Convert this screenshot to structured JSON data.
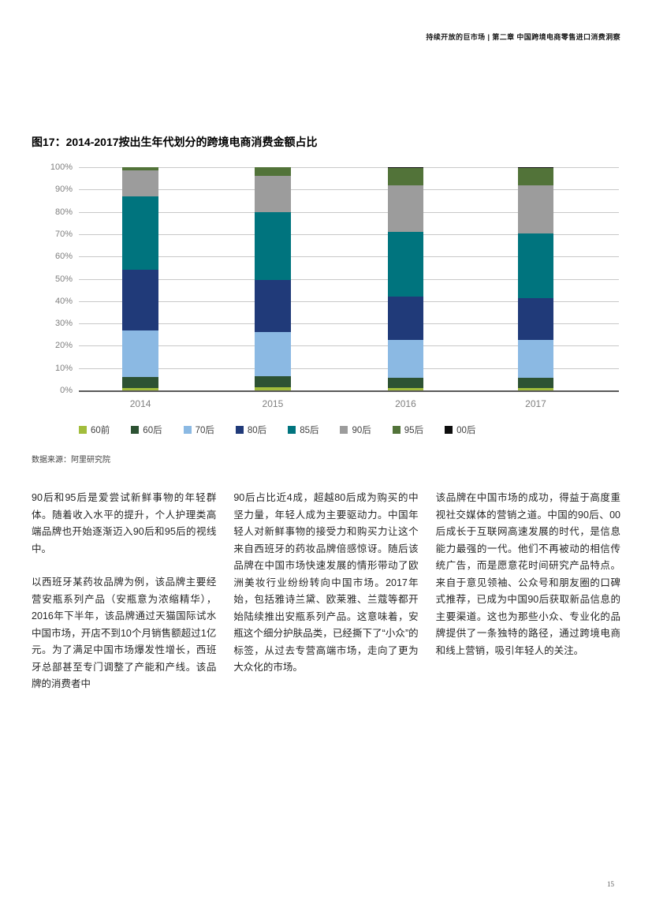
{
  "page": {
    "header": "持续开放的巨市场 | 第二章 中国跨境电商零售进口消费洞察",
    "page_number": "15"
  },
  "figure": {
    "title": "图17：2014-2017按出生年代划分的跨境电商消费金额占比",
    "source": "数据来源：阿里研究院"
  },
  "chart_data": {
    "type": "bar",
    "stacked": true,
    "title": "图17：2014-2017按出生年代划分的跨境电商消费金额占比",
    "categories": [
      "2014",
      "2015",
      "2016",
      "2017"
    ],
    "series": [
      {
        "name": "60前",
        "color": "#a2bd3c",
        "values": [
          1,
          1.5,
          1,
          1
        ]
      },
      {
        "name": "60后",
        "color": "#2d5233",
        "values": [
          5,
          5,
          4.5,
          4.5
        ]
      },
      {
        "name": "70后",
        "color": "#8bb9e3",
        "values": [
          21,
          19.5,
          17,
          17
        ]
      },
      {
        "name": "80后",
        "color": "#203a79",
        "values": [
          27,
          23.5,
          19.5,
          19
        ]
      },
      {
        "name": "85后",
        "color": "#00747e",
        "values": [
          33,
          30.5,
          29,
          29
        ]
      },
      {
        "name": "90后",
        "color": "#9c9c9c",
        "values": [
          11.5,
          16,
          21,
          21.5
        ]
      },
      {
        "name": "95后",
        "color": "#527339",
        "values": [
          1.5,
          4,
          7.5,
          7.5
        ]
      },
      {
        "name": "00后",
        "color": "#0d0d0d",
        "values": [
          0,
          0,
          0.5,
          0.5
        ]
      }
    ],
    "xlabel": "",
    "ylabel": "",
    "ylim": [
      0,
      100
    ],
    "yticks": [
      "100%",
      "90%",
      "80%",
      "70%",
      "60%",
      "50%",
      "40%",
      "30%",
      "20%",
      "10%",
      "0%"
    ],
    "bar_centers_pct": [
      11.4,
      35.9,
      60.5,
      84.6
    ],
    "grid": true,
    "legend_position": "bottom"
  },
  "body": {
    "col1": [
      "90后和95后是爱尝试新鲜事物的年轻群体。随着收入水平的提升，个人护理类高端品牌也开始逐渐迈入90后和95后的视线中。",
      "以西班牙某药妆品牌为例，该品牌主要经营安瓶系列产品（安瓶意为浓缩精华），2016年下半年，该品牌通过天猫国际试水中国市场，开店不到10个月销售额超过1亿元。为了满足中国市场爆发性增长，西班牙总部甚至专门调整了产能和产线。该品牌的消费者中"
    ],
    "col2": [
      "90后占比近4成，超越80后成为购买的中坚力量，年轻人成为主要驱动力。中国年轻人对新鲜事物的接受力和购买力让这个来自西班牙的药妆品牌倍感惊讶。随后该品牌在中国市场快速发展的情形带动了欧洲美妆行业纷纷转向中国市场。2017年始，包括雅诗兰黛、欧莱雅、兰蔻等都开始陆续推出安瓶系列产品。这意味着，安瓶这个细分护肤品类，已经撕下了“小众”的标签，从过去专营高端市场，走向了更为大众化的市场。"
    ],
    "col3": [
      "该品牌在中国市场的成功，得益于高度重视社交媒体的营销之道。中国的90后、00后成长于互联网高速发展的时代，是信息能力最强的一代。他们不再被动的相信传统广告，而是愿意花时间研究产品特点。来自于意见领袖、公众号和朋友圈的口碑式推荐，已成为中国90后获取新品信息的主要渠道。这也为那些小众、专业化的品牌提供了一条独特的路径，通过跨境电商和线上营销，吸引年轻人的关注。"
    ]
  }
}
